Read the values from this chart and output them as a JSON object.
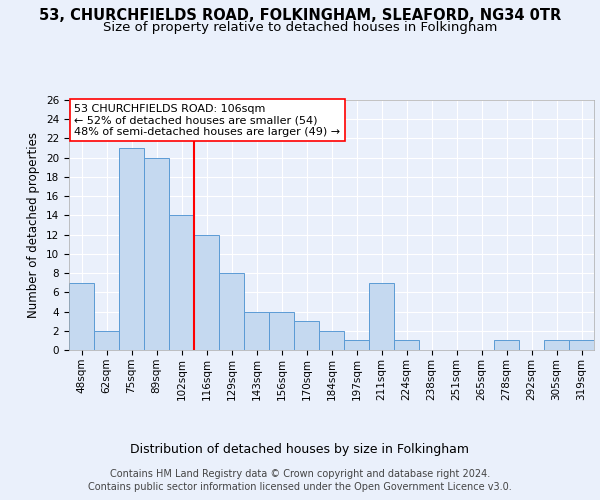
{
  "title1": "53, CHURCHFIELDS ROAD, FOLKINGHAM, SLEAFORD, NG34 0TR",
  "title2": "Size of property relative to detached houses in Folkingham",
  "xlabel": "Distribution of detached houses by size in Folkingham",
  "ylabel": "Number of detached properties",
  "categories": [
    "48sqm",
    "62sqm",
    "75sqm",
    "89sqm",
    "102sqm",
    "116sqm",
    "129sqm",
    "143sqm",
    "156sqm",
    "170sqm",
    "184sqm",
    "197sqm",
    "211sqm",
    "224sqm",
    "238sqm",
    "251sqm",
    "265sqm",
    "278sqm",
    "292sqm",
    "305sqm",
    "319sqm"
  ],
  "values": [
    7,
    2,
    21,
    20,
    14,
    12,
    8,
    4,
    4,
    3,
    2,
    1,
    7,
    1,
    0,
    0,
    0,
    1,
    0,
    1,
    1
  ],
  "bar_color": "#c5d9f0",
  "bar_edge_color": "#5b9bd5",
  "vline_x": 4.5,
  "vline_color": "#ff0000",
  "annotation_line1": "53 CHURCHFIELDS ROAD: 106sqm",
  "annotation_line2": "← 52% of detached houses are smaller (54)",
  "annotation_line3": "48% of semi-detached houses are larger (49) →",
  "annotation_box_color": "#ffffff",
  "annotation_box_edge": "#ff0000",
  "ylim": [
    0,
    26
  ],
  "yticks": [
    0,
    2,
    4,
    6,
    8,
    10,
    12,
    14,
    16,
    18,
    20,
    22,
    24,
    26
  ],
  "footer1": "Contains HM Land Registry data © Crown copyright and database right 2024.",
  "footer2": "Contains public sector information licensed under the Open Government Licence v3.0.",
  "background_color": "#eaf0fb",
  "plot_background": "#eaf0fb",
  "title1_fontsize": 10.5,
  "title2_fontsize": 9.5,
  "xlabel_fontsize": 9,
  "ylabel_fontsize": 8.5,
  "tick_fontsize": 7.5,
  "annotation_fontsize": 8,
  "footer_fontsize": 7
}
